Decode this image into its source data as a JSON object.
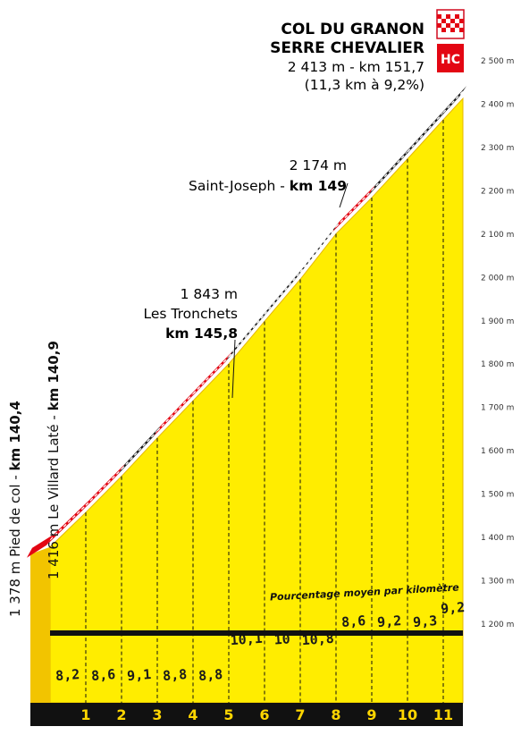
{
  "summit": {
    "name_line1": "COL DU GRANON",
    "name_line2": "SERRE CHEVALIER",
    "stats": "2 413 m - km 151,7",
    "details": "(11,3 km à 9,2%)",
    "category": "HC"
  },
  "waypoints": [
    {
      "altitude_text": "2 174 m",
      "name": "Saint-Joseph - ",
      "km_text": "km 149"
    },
    {
      "altitude_text": "1 843 m",
      "name": "Les Tronchets",
      "km_text": "km 145,8"
    }
  ],
  "side_labels": [
    {
      "text": "1 378 m Pied de col - ",
      "bold": "km 140,4"
    },
    {
      "text": "1 416 m Le Villard Laté - ",
      "bold": "km 140,9"
    }
  ],
  "note": "Pourcentage moyen par kilomètre",
  "colors": {
    "profile_fill": "#ffed00",
    "profile_edge": "#e6b800",
    "road_black": "#1a1a1a",
    "road_red": "#e30613",
    "base_band": "#111111",
    "km_number": "#ffd600"
  },
  "chart_data": {
    "type": "area",
    "title": "COL DU GRANON SERRE CHEVALIER",
    "y_unit": "m",
    "ylim": [
      1200,
      2500
    ],
    "y_ticks": [
      1200,
      1300,
      1400,
      1500,
      1600,
      1700,
      1800,
      1900,
      2000,
      2100,
      2200,
      2300,
      2400,
      2500
    ],
    "y_tick_labels": [
      "1 200 m",
      "1 300 m",
      "1 400 m",
      "1 500 m",
      "1 600 m",
      "1 700 m",
      "1 800 m",
      "1 900 m",
      "2 000 m",
      "2 100 m",
      "2 200 m",
      "2 300 m",
      "2 400 m",
      "2 500 m"
    ],
    "km_markers": [
      "1",
      "2",
      "3",
      "4",
      "5",
      "6",
      "7",
      "8",
      "9",
      "10",
      "11"
    ],
    "gradients": [
      {
        "label": "8,2",
        "value": 8.2,
        "color": "red"
      },
      {
        "label": "8,6",
        "value": 8.6,
        "color": "red"
      },
      {
        "label": "9,1",
        "value": 9.1,
        "color": "black"
      },
      {
        "label": "8,8",
        "value": 8.8,
        "color": "red"
      },
      {
        "label": "8,8",
        "value": 8.8,
        "color": "red"
      },
      {
        "label": "10,1",
        "value": 10.1,
        "color": "black"
      },
      {
        "label": "10",
        "value": 10.0,
        "color": "black"
      },
      {
        "label": "10,8",
        "value": 10.8,
        "color": "black"
      },
      {
        "label": "8,6",
        "value": 8.6,
        "color": "red"
      },
      {
        "label": "9,2",
        "value": 9.2,
        "color": "black"
      },
      {
        "label": "9,3",
        "value": 9.3,
        "color": "black"
      },
      {
        "label": "9,2",
        "value": 9.2,
        "color": "black"
      }
    ],
    "start_altitude": 1378,
    "summit_altitude": 2413,
    "grid": false
  }
}
